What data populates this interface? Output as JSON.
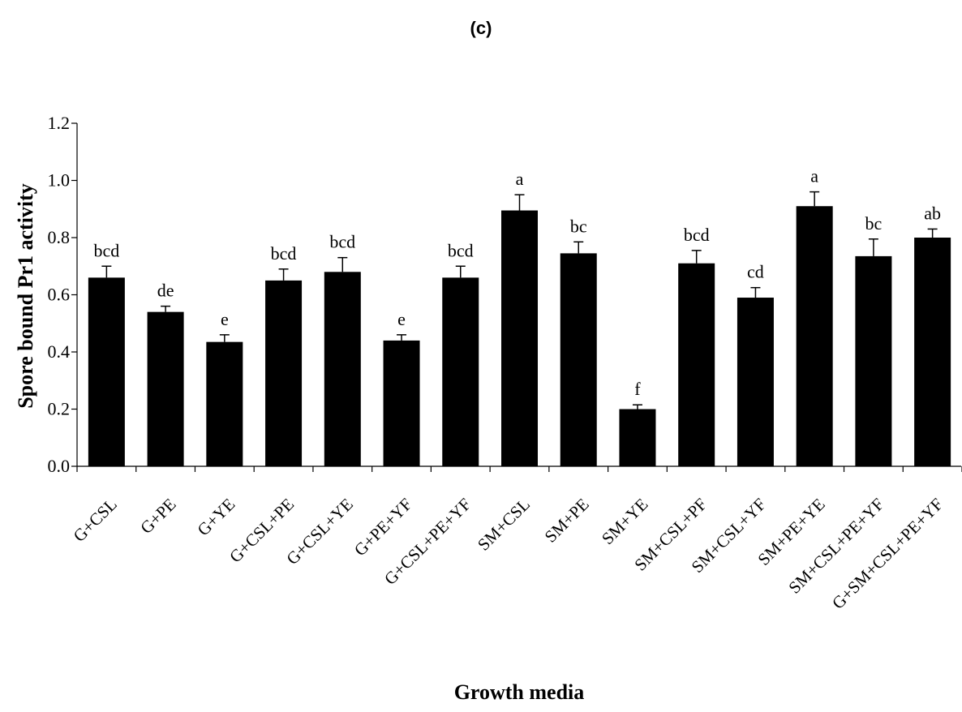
{
  "chart_data": {
    "type": "bar",
    "panel_label": "(c)",
    "xlabel": "Growth media",
    "ylabel": "Spore bound Pr1 activity",
    "ylim": [
      0,
      1.2
    ],
    "yticks": [
      "0.0",
      "0.2",
      "0.4",
      "0.6",
      "0.8",
      "1.0",
      "1.2"
    ],
    "grid": false,
    "bar_color": "#000000",
    "categories": [
      "G+CSL",
      "G+PE",
      "G+YE",
      "G+CSL+PE",
      "G+CSL+YE",
      "G+PE+YF",
      "G+CSL+PE+YF",
      "SM+CSL",
      "SM+PE",
      "SM+YE",
      "SM+CSL+PF",
      "SM+CSL+YF",
      "SM+PE+YE",
      "SM+CSL+PE+YF",
      "G+SM+CSL+PE+YF"
    ],
    "values": [
      0.66,
      0.54,
      0.435,
      0.65,
      0.68,
      0.44,
      0.66,
      0.895,
      0.745,
      0.2,
      0.71,
      0.59,
      0.91,
      0.735,
      0.8
    ],
    "errors": [
      0.04,
      0.02,
      0.025,
      0.04,
      0.05,
      0.02,
      0.04,
      0.055,
      0.04,
      0.015,
      0.045,
      0.035,
      0.05,
      0.06,
      0.03
    ],
    "significance": [
      "bcd",
      "de",
      "e",
      "bcd",
      "bcd",
      "e",
      "bcd",
      "a",
      "bc",
      "f",
      "bcd",
      "cd",
      "a",
      "bc",
      "ab"
    ]
  }
}
